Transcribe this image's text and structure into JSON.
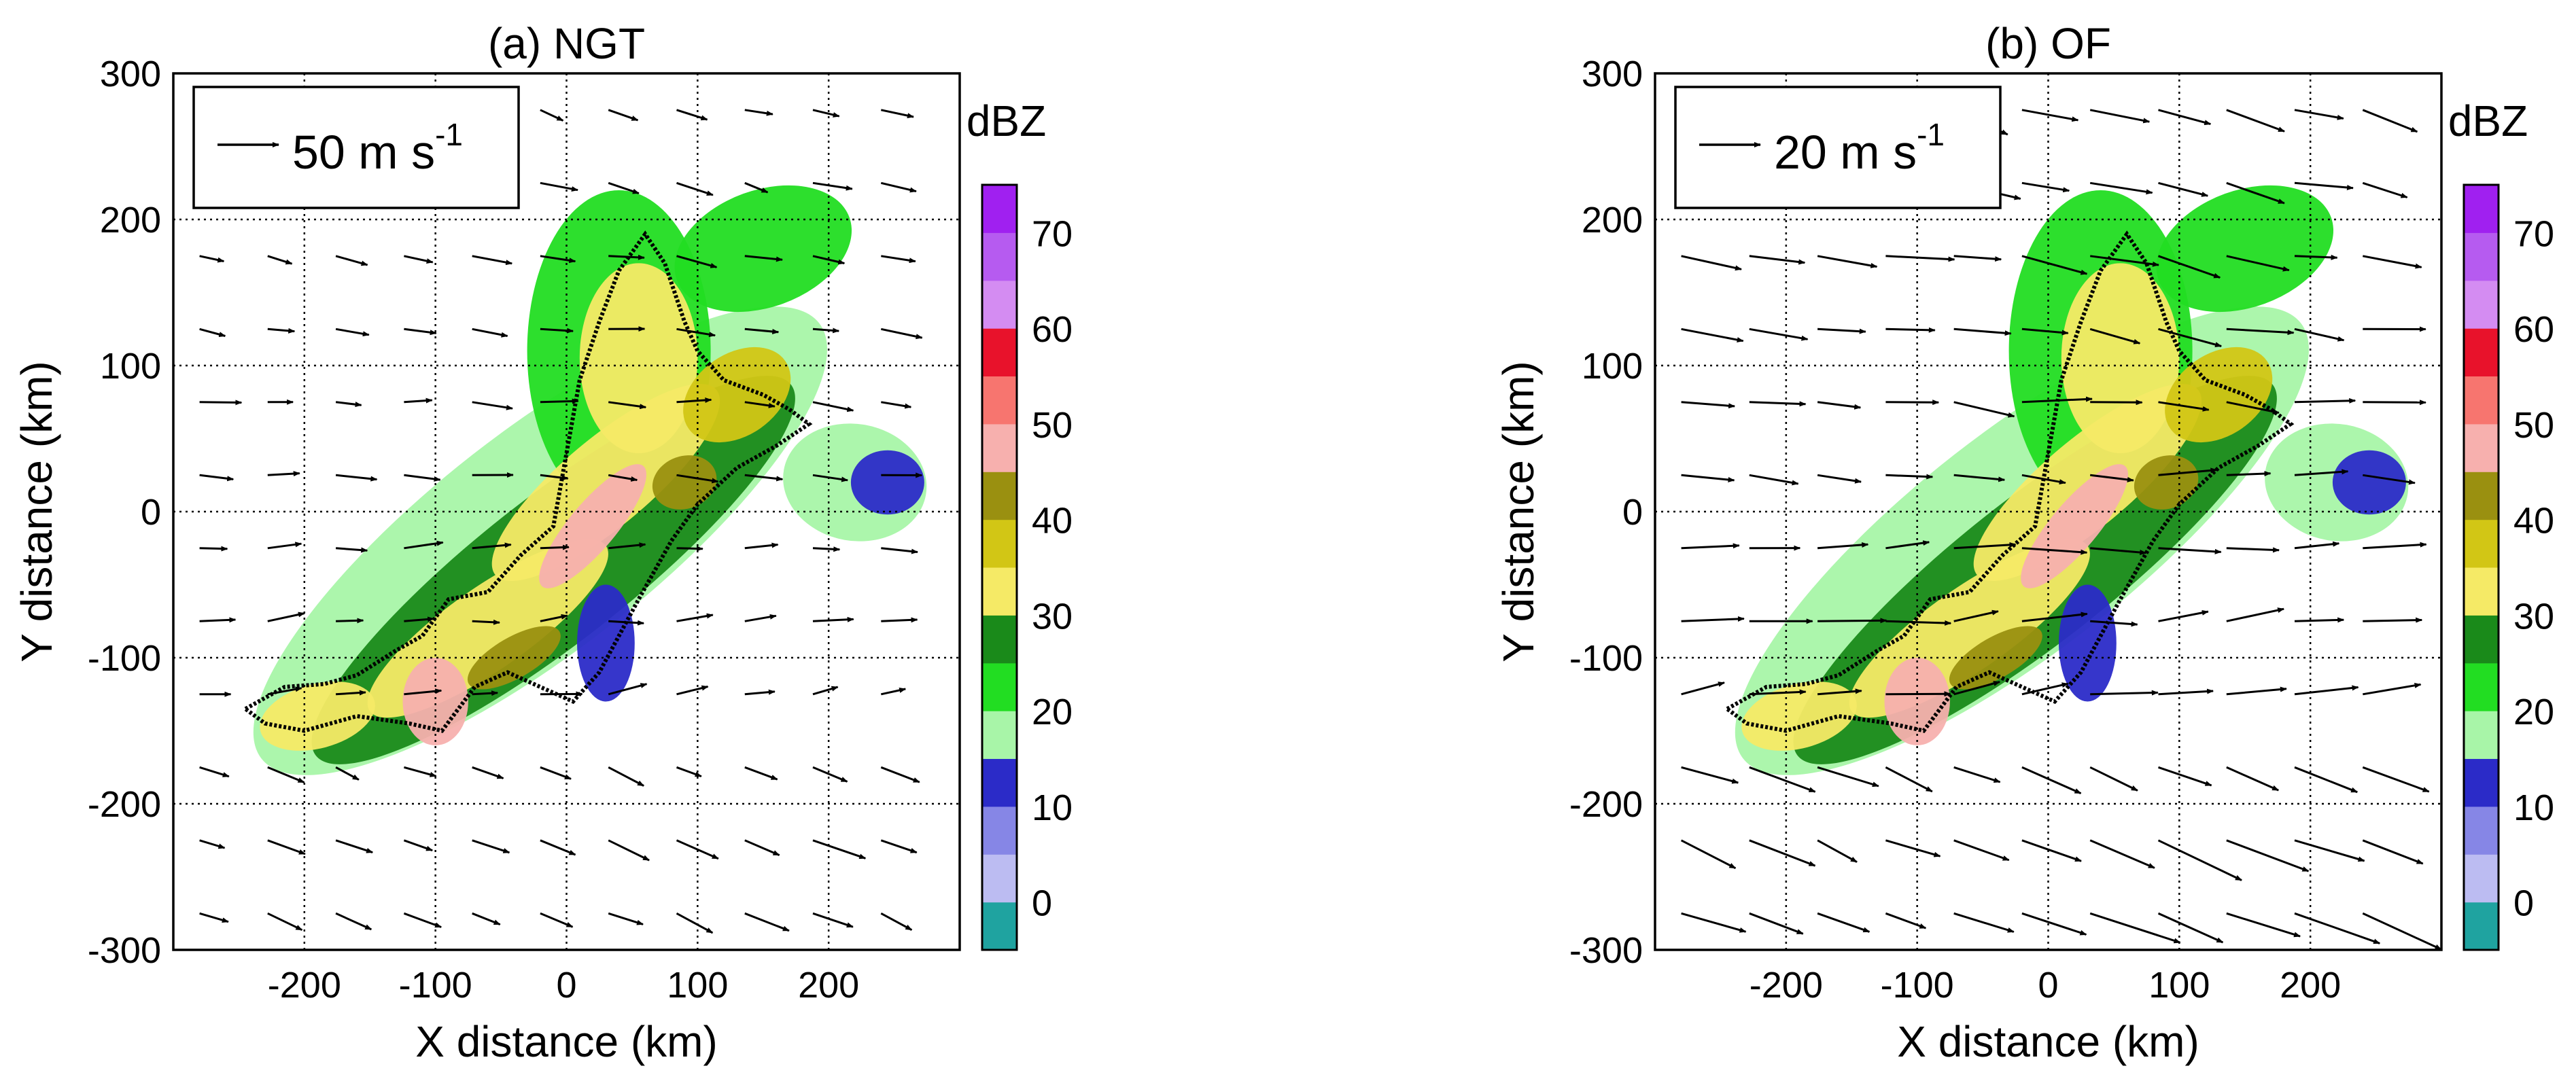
{
  "chart_data": [
    {
      "type": "heatmap",
      "title": "(a) NGT",
      "xlabel": "X distance (km)",
      "ylabel": "Y distance (km)",
      "xlim": [
        -300,
        300
      ],
      "ylim": [
        -300,
        300
      ],
      "xticks": [
        -200,
        -100,
        0,
        100,
        200
      ],
      "yticks": [
        300,
        200,
        100,
        0,
        -100,
        -200,
        -300
      ],
      "grid": true,
      "reference_vector": {
        "value": "50 m s",
        "exponent": "-1"
      },
      "colorbar": {
        "label": "dBZ",
        "ticks": [
          70,
          60,
          50,
          40,
          30,
          20,
          10,
          0
        ],
        "bounds": [
          -5,
          0,
          5,
          10,
          15,
          20,
          25,
          30,
          35,
          40,
          45,
          50,
          55,
          60,
          65,
          70,
          75
        ],
        "colors": [
          "#1fa3a0",
          "#bcbcf2",
          "#8686e6",
          "#2b2bc8",
          "#a8f5a8",
          "#22dd22",
          "#1a8a1a",
          "#f5ea66",
          "#d2c615",
          "#9a9010",
          "#f7b0ae",
          "#f7756f",
          "#e8122b",
          "#d48cf2",
          "#b65bf0",
          "#a020f0"
        ]
      }
    },
    {
      "type": "heatmap",
      "title": "(b) OF",
      "xlabel": "X distance (km)",
      "ylabel": "Y distance (km)",
      "xlim": [
        -300,
        300
      ],
      "ylim": [
        -300,
        300
      ],
      "xticks": [
        -200,
        -100,
        0,
        100,
        200
      ],
      "yticks": [
        300,
        200,
        100,
        0,
        -100,
        -200,
        -300
      ],
      "grid": true,
      "reference_vector": {
        "value": "20 m s",
        "exponent": "-1"
      },
      "colorbar": {
        "label": "dBZ",
        "ticks": [
          70,
          60,
          50,
          40,
          30,
          20,
          10,
          0
        ],
        "bounds": [
          -5,
          0,
          5,
          10,
          15,
          20,
          25,
          30,
          35,
          40,
          45,
          50,
          55,
          60,
          65,
          70,
          75
        ],
        "colors": [
          "#1fa3a0",
          "#bcbcf2",
          "#8686e6",
          "#2b2bc8",
          "#a8f5a8",
          "#22dd22",
          "#1a8a1a",
          "#f5ea66",
          "#d2c615",
          "#9a9010",
          "#f7b0ae",
          "#f7756f",
          "#e8122b",
          "#d48cf2",
          "#b65bf0",
          "#a020f0"
        ]
      }
    }
  ]
}
